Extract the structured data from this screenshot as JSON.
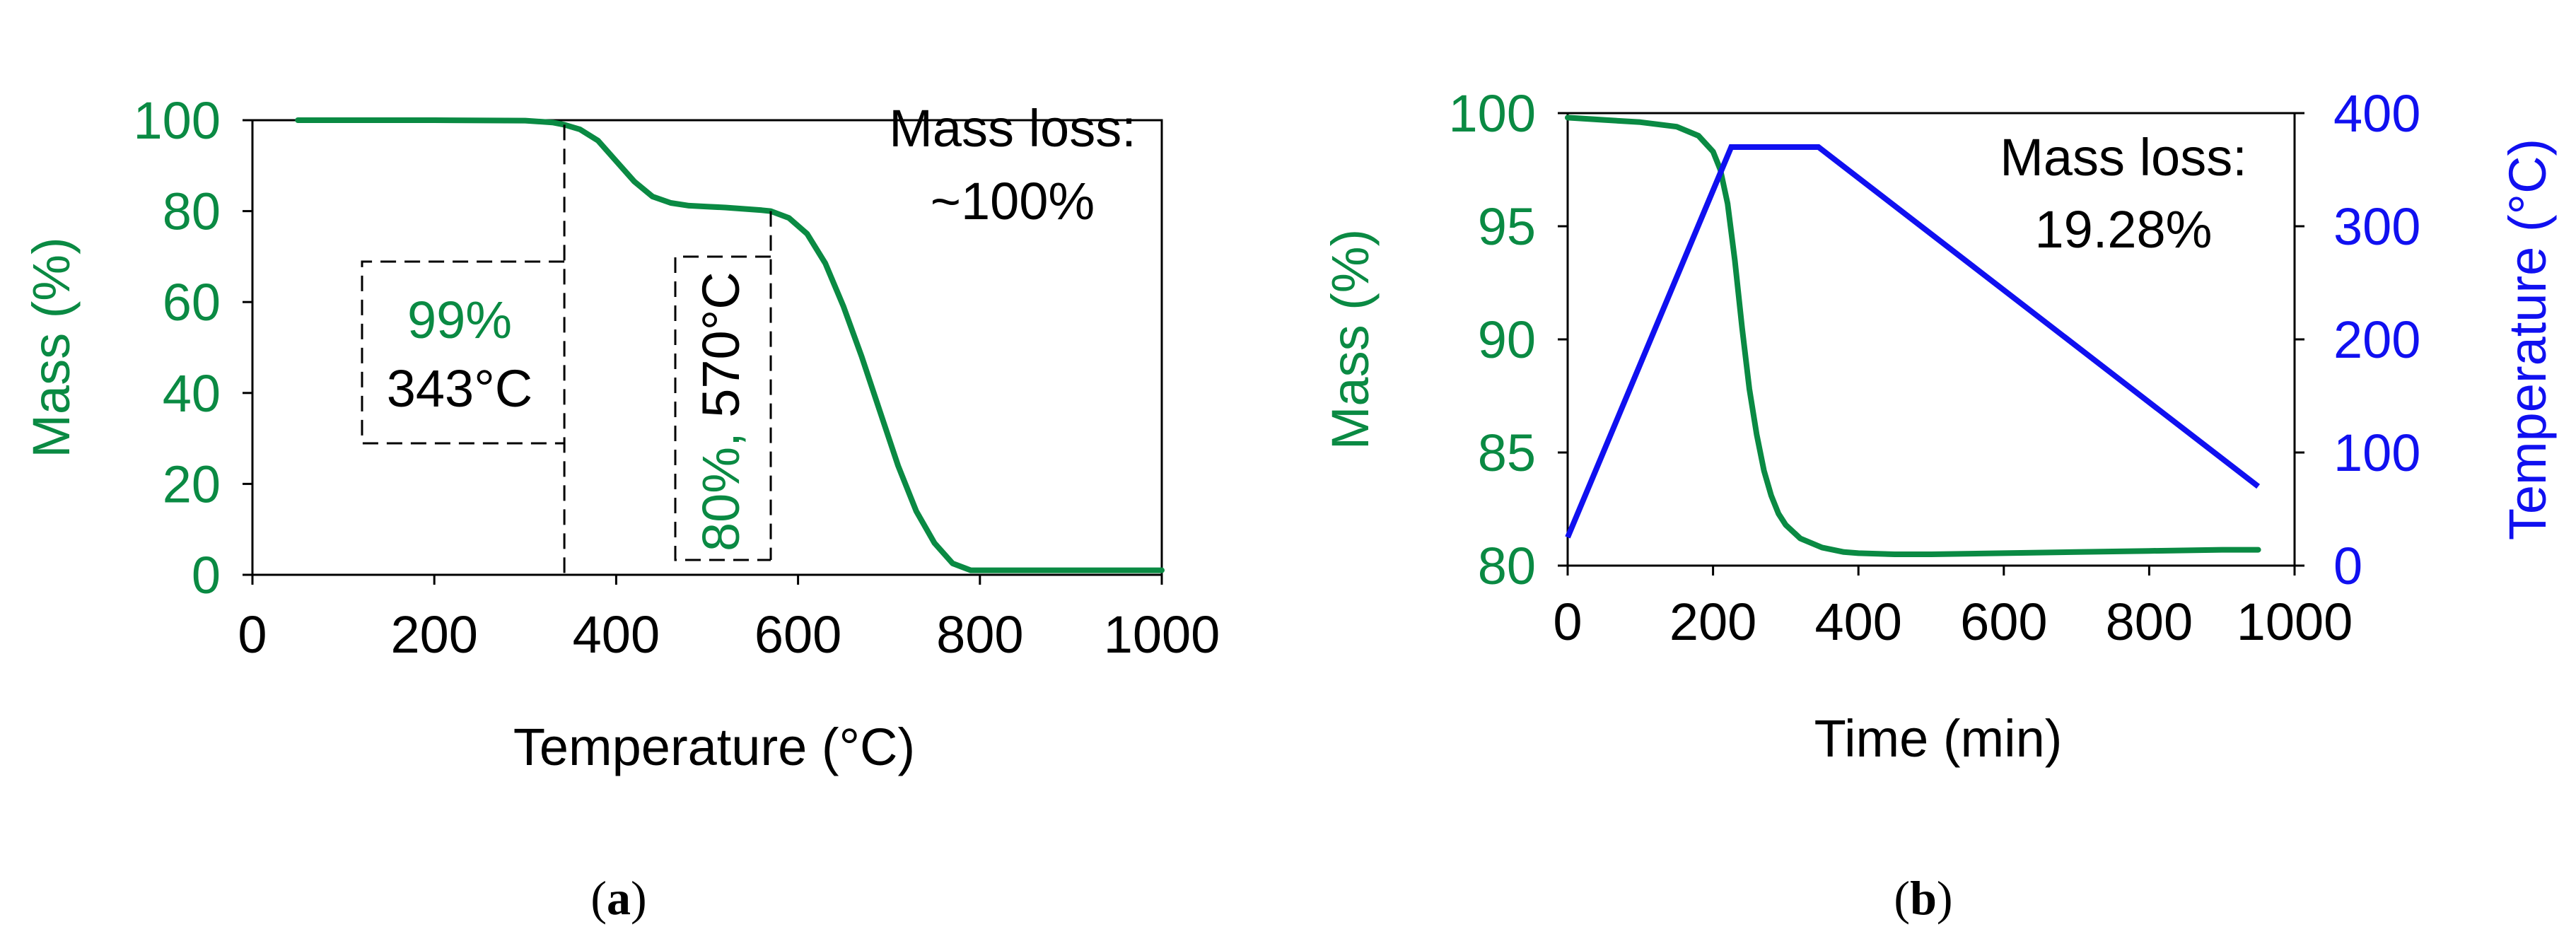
{
  "colors": {
    "green": "#0a8a43",
    "blue": "#1010f0",
    "black": "#000000"
  },
  "chart_data": [
    {
      "type": "line",
      "panel": "a",
      "caption": {
        "open": "(",
        "letter": "a",
        "close": ")"
      },
      "xlabel": "Temperature (°C)",
      "ylabel": "Mass (%)",
      "xlim": [
        0,
        1000
      ],
      "ylim": [
        0,
        100
      ],
      "xticks": [
        "0",
        "200",
        "400",
        "600",
        "800",
        "1000"
      ],
      "yticks": [
        "0",
        "20",
        "40",
        "60",
        "80",
        "100"
      ],
      "grid": false,
      "series": [
        {
          "name": "Mass",
          "color": "#0a8a43",
          "x": [
            50,
            100,
            200,
            300,
            330,
            343,
            360,
            380,
            400,
            420,
            440,
            460,
            480,
            500,
            520,
            540,
            560,
            570,
            590,
            610,
            630,
            650,
            670,
            690,
            710,
            730,
            750,
            770,
            790,
            800,
            850,
            900,
            950,
            1000
          ],
          "y": [
            100,
            100,
            100,
            99.9,
            99.5,
            99,
            98,
            95.5,
            91,
            86.5,
            83.2,
            81.8,
            81.2,
            81,
            80.8,
            80.5,
            80.2,
            80,
            78.5,
            75,
            68.5,
            59,
            48,
            36,
            24,
            14,
            7,
            2.5,
            1,
            1,
            1,
            1,
            1,
            1
          ]
        }
      ],
      "markers": [
        {
          "x": 343,
          "label": "99%",
          "label2": "343°C"
        },
        {
          "x": 570,
          "label": "80%,",
          "label2": "570°C"
        }
      ],
      "annotation": {
        "line1": "Mass loss:",
        "line2": "~100%"
      }
    },
    {
      "type": "line",
      "panel": "b",
      "caption": {
        "open": "(",
        "letter": "b",
        "close": ")"
      },
      "xlabel": "Time (min)",
      "ylabel": "Mass (%)",
      "ylabel_right": "Temperature (°C)",
      "xlim": [
        0,
        1000
      ],
      "ylim": [
        80,
        100
      ],
      "ylim_right": [
        0,
        400
      ],
      "xticks": [
        "0",
        "200",
        "400",
        "600",
        "800",
        "1000"
      ],
      "yticks": [
        "80",
        "85",
        "90",
        "95",
        "100"
      ],
      "yticks_right": [
        "0",
        "100",
        "200",
        "300",
        "400"
      ],
      "grid": false,
      "series": [
        {
          "name": "Mass",
          "axis": "left",
          "color": "#0a8a43",
          "x": [
            0,
            50,
            100,
            150,
            180,
            200,
            210,
            220,
            230,
            240,
            250,
            260,
            270,
            280,
            290,
            300,
            320,
            350,
            380,
            400,
            450,
            500,
            600,
            700,
            800,
            900,
            950
          ],
          "y": [
            99.8,
            99.7,
            99.6,
            99.4,
            99,
            98.3,
            97.5,
            96,
            93.5,
            90.5,
            87.8,
            85.8,
            84.2,
            83.1,
            82.3,
            81.8,
            81.2,
            80.8,
            80.6,
            80.55,
            80.5,
            80.5,
            80.55,
            80.6,
            80.65,
            80.7,
            80.7
          ]
        },
        {
          "name": "Temperature",
          "axis": "right",
          "color": "#1010f0",
          "x": [
            0,
            225,
            345,
            950
          ],
          "y": [
            25,
            370,
            370,
            70
          ]
        }
      ],
      "annotation": {
        "line1": "Mass loss:",
        "line2": "19.28%"
      }
    }
  ]
}
